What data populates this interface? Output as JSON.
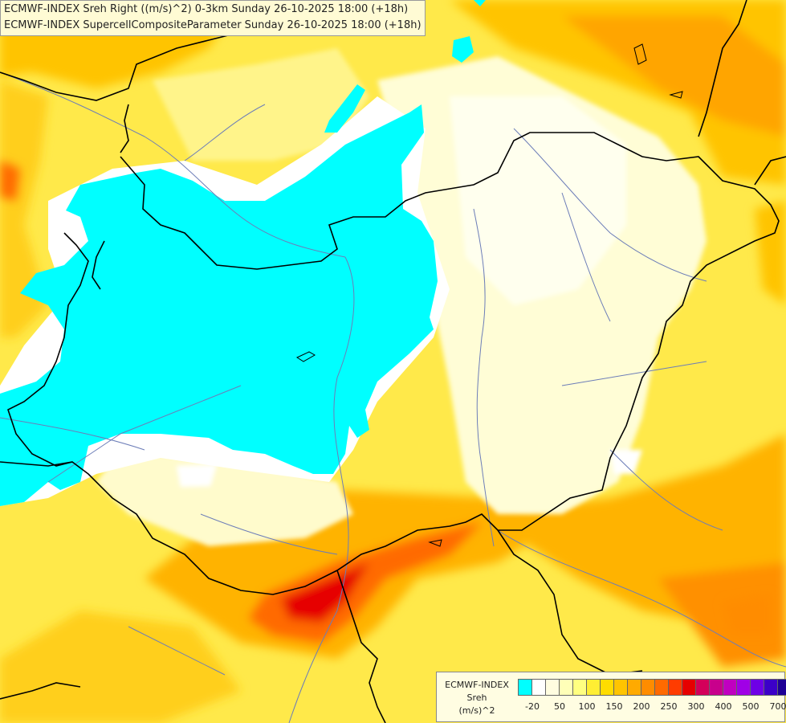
{
  "title": {
    "line1": "ECMWF-INDEX Sreh Right ((m/s)^2) 0-3km Sunday 26-10-2025 18:00 (+18h)",
    "line2": "ECMWF-INDEX SupercellCompositeParameter Sunday 26-10-2025 18:00 (+18h)"
  },
  "legend": {
    "model": "ECMWF-INDEX",
    "parameter": "Sreh",
    "unit": "(m/s)^2",
    "colors": [
      "#00ffff",
      "#ffffff",
      "#fffde0",
      "#ffffb8",
      "#ffff80",
      "#ffee33",
      "#ffdc00",
      "#ffc400",
      "#ffaa00",
      "#ff8c00",
      "#ff6a00",
      "#ff3c00",
      "#e60000",
      "#d4005a",
      "#c8008c",
      "#c000c0",
      "#a000e6",
      "#6e00e6",
      "#3c00c8",
      "#1e0096"
    ],
    "ticks": [
      "-20",
      "50",
      "100",
      "150",
      "200",
      "250",
      "300",
      "400",
      "500",
      "700"
    ]
  }
}
